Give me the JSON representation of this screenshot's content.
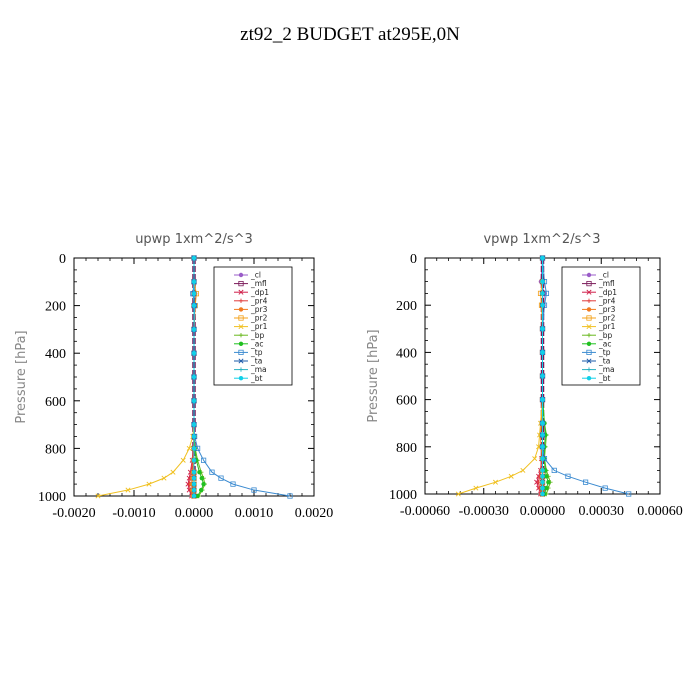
{
  "figure_title": "zt92_2  BUDGET at295E,0N",
  "legend_labels": [
    "_cl",
    "_mfl",
    "_dp1",
    "_pr4",
    "_pr3",
    "_pr2",
    "_pr1",
    "_bp",
    "_ac",
    "_tp",
    "_ta",
    "_ma",
    "_bt"
  ],
  "colors": {
    "_cl": "#9a5cc8",
    "_mfl": "#7a1a5a",
    "_dp1": "#d0204a",
    "_pr4": "#e03b3b",
    "_pr3": "#f07a20",
    "_pr2": "#f4a21a",
    "_pr1": "#f0c020",
    "_bp": "#6ab820",
    "_ac": "#20c020",
    "_tp": "#3a8ad0",
    "_ta": "#1a58a8",
    "_ma": "#2ab0c0",
    "_bt": "#10d0e8"
  },
  "chart_data": [
    {
      "type": "line",
      "title": "upwp   1xm^2/s^3",
      "ylabel": "Pressure [hPa]",
      "xlim": [
        -0.002,
        0.002
      ],
      "ylim": [
        1000,
        0
      ],
      "y_inverted": true,
      "xticks": [
        "-0.0020",
        "-0.0010",
        "0.0000",
        "0.0010",
        "0.0020"
      ],
      "yticks": [
        "0",
        "200",
        "400",
        "600",
        "800",
        "1000"
      ],
      "pressure": [
        0,
        100,
        150,
        200,
        300,
        400,
        500,
        600,
        700,
        750,
        800,
        850,
        900,
        925,
        950,
        975,
        1000
      ],
      "series": [
        {
          "name": "_cl",
          "values": [
            0,
            0,
            2e-05,
            1e-05,
            0,
            0,
            0,
            0,
            0,
            0,
            0,
            0,
            0,
            0,
            0,
            0,
            0
          ]
        },
        {
          "name": "_mfl",
          "values": [
            0,
            0,
            0,
            0,
            0,
            0,
            0,
            0,
            0,
            0,
            0,
            0,
            0,
            0,
            0,
            0,
            0
          ]
        },
        {
          "name": "_dp1",
          "values": [
            0,
            0,
            0,
            0,
            0,
            0,
            0,
            0,
            0,
            0,
            -1e-05,
            -3e-05,
            -6e-05,
            -8e-05,
            -0.0001,
            -8e-05,
            -4e-05
          ]
        },
        {
          "name": "_pr4",
          "values": [
            0,
            0,
            0,
            0,
            0,
            0,
            0,
            0,
            0,
            0,
            -1e-05,
            -2e-05,
            -4e-05,
            -6e-05,
            -8e-05,
            -6e-05,
            -3e-05
          ]
        },
        {
          "name": "_pr3",
          "values": [
            0,
            0,
            0,
            0,
            0,
            0,
            0,
            0,
            0,
            0,
            0,
            -1e-05,
            -2e-05,
            -3e-05,
            -4e-05,
            -3e-05,
            -2e-05
          ]
        },
        {
          "name": "_pr2",
          "values": [
            0,
            0,
            4e-05,
            2e-05,
            0,
            0,
            0,
            0,
            0,
            0,
            0,
            0,
            0,
            0,
            0,
            0,
            0
          ]
        },
        {
          "name": "_pr1",
          "values": [
            0,
            0,
            0,
            0,
            0,
            0,
            0,
            0,
            0,
            -2e-05,
            -8e-05,
            -0.00018,
            -0.00035,
            -0.0005,
            -0.00075,
            -0.0011,
            -0.0016
          ]
        },
        {
          "name": "_bp",
          "values": [
            0,
            0,
            0,
            0,
            0,
            0,
            0,
            0,
            0,
            0,
            2e-05,
            6e-05,
            0.00012,
            0.00016,
            0.00018,
            0.00014,
            8e-05
          ]
        },
        {
          "name": "_ac",
          "values": [
            0,
            0,
            0,
            0,
            0,
            0,
            0,
            0,
            0,
            0,
            1e-05,
            4e-05,
            9e-05,
            0.00013,
            0.00016,
            0.00012,
            6e-05
          ]
        },
        {
          "name": "_tp",
          "values": [
            0,
            0,
            -2e-05,
            1e-05,
            0,
            0,
            0,
            0,
            0,
            1e-05,
            6e-05,
            0.00016,
            0.0003,
            0.00045,
            0.00065,
            0.001,
            0.0016
          ]
        },
        {
          "name": "_ta",
          "values": [
            0,
            0,
            0,
            0,
            0,
            0,
            0,
            0,
            0,
            0,
            0,
            0,
            0,
            0,
            0,
            0,
            0
          ]
        },
        {
          "name": "_ma",
          "values": [
            0,
            0,
            0,
            0,
            0,
            0,
            0,
            0,
            0,
            0,
            0,
            0,
            0,
            0,
            0,
            0,
            0
          ]
        },
        {
          "name": "_bt",
          "values": [
            0,
            0,
            0,
            0,
            0,
            0,
            0,
            0,
            0,
            0,
            0,
            0,
            0,
            0,
            0,
            0,
            0
          ]
        }
      ]
    },
    {
      "type": "line",
      "title": "vpwp   1xm^2/s^3",
      "ylabel": "Pressure [hPa]",
      "xlim": [
        -0.0006,
        0.0006
      ],
      "ylim": [
        1000,
        0
      ],
      "y_inverted": true,
      "xticks": [
        "-0.00060",
        "-0.00030",
        "0.00000",
        "0.00030",
        "0.00060"
      ],
      "yticks": [
        "0",
        "200",
        "400",
        "600",
        "800",
        "1000"
      ],
      "pressure": [
        0,
        100,
        150,
        200,
        300,
        400,
        500,
        600,
        700,
        750,
        800,
        850,
        900,
        925,
        950,
        975,
        1000
      ],
      "series": [
        {
          "name": "_cl",
          "values": [
            0,
            -8e-06,
            1e-05,
            5e-06,
            0,
            0,
            0,
            0,
            0,
            0,
            0,
            0,
            0,
            0,
            0,
            0,
            0
          ]
        },
        {
          "name": "_mfl",
          "values": [
            0,
            0,
            0,
            0,
            0,
            0,
            0,
            0,
            0,
            0,
            0,
            0,
            0,
            0,
            0,
            0,
            0
          ]
        },
        {
          "name": "_dp1",
          "values": [
            0,
            0,
            0,
            0,
            0,
            0,
            0,
            0,
            0,
            0,
            0,
            -5e-06,
            -1e-05,
            -2e-05,
            -3e-05,
            -2e-05,
            -1e-05
          ]
        },
        {
          "name": "_pr4",
          "values": [
            0,
            0,
            0,
            0,
            0,
            0,
            0,
            0,
            0,
            0,
            0,
            -4e-06,
            -8e-06,
            -1.5e-05,
            -2e-05,
            -1.5e-05,
            -8e-06
          ]
        },
        {
          "name": "_pr3",
          "values": [
            0,
            0,
            0,
            0,
            0,
            0,
            0,
            0,
            -5e-06,
            -1e-05,
            -8e-06,
            0,
            0,
            0,
            0,
            0,
            0
          ]
        },
        {
          "name": "_pr2",
          "values": [
            0,
            0,
            -1e-05,
            -5e-06,
            0,
            0,
            0,
            0,
            0,
            0,
            0,
            0,
            0,
            0,
            0,
            0,
            0
          ]
        },
        {
          "name": "_pr1",
          "values": [
            0,
            0,
            0,
            0,
            0,
            0,
            0,
            0,
            -1e-05,
            -1.5e-05,
            -2e-05,
            -4e-05,
            -0.0001,
            -0.00016,
            -0.00024,
            -0.00034,
            -0.00043
          ]
        },
        {
          "name": "_bp",
          "values": [
            0,
            0,
            0,
            0,
            0,
            0,
            0,
            0,
            1e-05,
            2e-05,
            1.5e-05,
            1e-05,
            2e-05,
            3e-05,
            4e-05,
            3e-05,
            2e-05
          ]
        },
        {
          "name": "_ac",
          "values": [
            0,
            0,
            0,
            0,
            0,
            0,
            0,
            0,
            1e-05,
            1.5e-05,
            1e-05,
            8e-06,
            1.5e-05,
            2e-05,
            3e-05,
            2e-05,
            1e-05
          ]
        },
        {
          "name": "_tp",
          "values": [
            0,
            1e-05,
            2e-05,
            1e-05,
            0,
            0,
            0,
            0,
            0,
            0,
            0,
            1e-05,
            6e-05,
            0.00013,
            0.00022,
            0.00032,
            0.00044
          ]
        },
        {
          "name": "_ta",
          "values": [
            0,
            0,
            0,
            0,
            0,
            0,
            0,
            0,
            0,
            0,
            0,
            0,
            0,
            0,
            0,
            0,
            0
          ]
        },
        {
          "name": "_ma",
          "values": [
            0,
            0,
            0,
            0,
            0,
            0,
            0,
            0,
            0,
            0,
            0,
            0,
            0,
            0,
            0,
            0,
            0
          ]
        },
        {
          "name": "_bt",
          "values": [
            0,
            0,
            0,
            0,
            0,
            0,
            0,
            0,
            0,
            0,
            0,
            0,
            0,
            0,
            0,
            0,
            0
          ]
        }
      ]
    }
  ]
}
